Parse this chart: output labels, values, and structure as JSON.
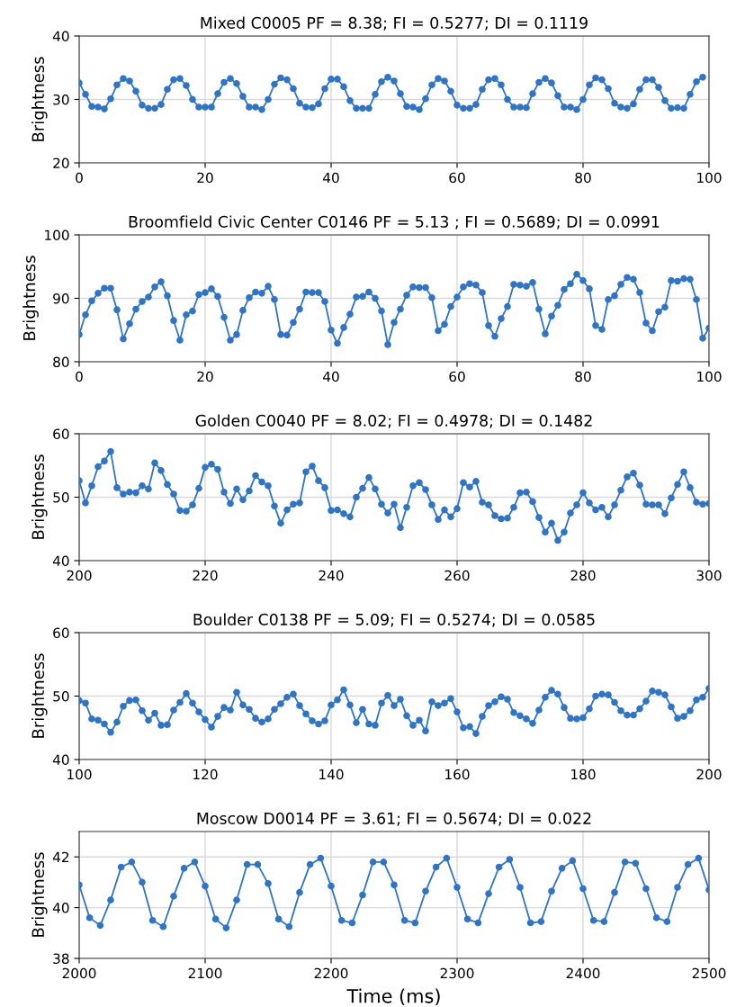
{
  "chart_data": [
    {
      "type": "line",
      "title": "Mixed C0005 PF = 8.38; FI = 0.5277; DI = 0.1119",
      "ylabel": "Brightness",
      "marker": "circle",
      "grid": true,
      "xlim": [
        0,
        100
      ],
      "xticks": [
        0,
        20,
        40,
        60,
        80,
        100
      ],
      "ylim": [
        20,
        40
      ],
      "yticks": [
        20,
        30,
        40
      ],
      "x": [
        0,
        1,
        2,
        3,
        4,
        5,
        6,
        7,
        8,
        9,
        10,
        11,
        12,
        13,
        14,
        15,
        16,
        17,
        18,
        19,
        20,
        21,
        22,
        23,
        24,
        25,
        26,
        27,
        28,
        29,
        30,
        31,
        32,
        33,
        34,
        35,
        36,
        37,
        38,
        39,
        40,
        41,
        42,
        43,
        44,
        45,
        46,
        47,
        48,
        49,
        50,
        51,
        52,
        53,
        54,
        55,
        56,
        57,
        58,
        59,
        60,
        61,
        62,
        63,
        64,
        65,
        66,
        67,
        68,
        69,
        70,
        71,
        72,
        73,
        74,
        75,
        76,
        77,
        78,
        79,
        80,
        81,
        82,
        83,
        84,
        85,
        86,
        87,
        88,
        89,
        90,
        91,
        92,
        93,
        94,
        95,
        96,
        97,
        98,
        99
      ],
      "series": [
        {
          "color": "#2e75c7",
          "values": [
            32.6,
            30.8,
            28.9,
            28.8,
            28.5,
            30.1,
            32.3,
            33.3,
            32.9,
            31.3,
            29.1,
            28.6,
            28.6,
            29.2,
            31.6,
            33.1,
            33.3,
            32.2,
            30.0,
            28.8,
            28.8,
            28.8,
            30.9,
            32.7,
            33.3,
            32.5,
            30.5,
            28.8,
            28.8,
            28.4,
            30.0,
            32.4,
            33.4,
            33.1,
            31.7,
            29.4,
            28.8,
            28.7,
            29.3,
            31.7,
            33.2,
            33.2,
            32.0,
            29.8,
            28.6,
            28.6,
            28.6,
            30.8,
            32.8,
            33.5,
            32.9,
            30.9,
            28.9,
            28.8,
            28.4,
            30.1,
            32.3,
            33.3,
            32.9,
            31.3,
            29.1,
            28.6,
            28.6,
            29.2,
            31.6,
            33.1,
            33.3,
            32.3,
            30.0,
            28.8,
            28.8,
            28.7,
            30.9,
            32.7,
            33.3,
            32.6,
            30.6,
            28.8,
            28.8,
            28.4,
            30.0,
            32.3,
            33.4,
            33.1,
            31.7,
            29.4,
            28.8,
            28.6,
            29.3,
            31.6,
            33.1,
            33.1,
            31.9,
            29.8,
            28.6,
            28.7,
            28.6,
            30.8,
            32.8,
            33.5
          ]
        }
      ]
    },
    {
      "type": "line",
      "title": "Broomfield Civic Center C0146 PF = 5.13 ; FI = 0.5689; DI = 0.0991",
      "ylabel": "Brightness",
      "marker": "circle",
      "grid": true,
      "xlim": [
        0,
        100
      ],
      "xticks": [
        0,
        20,
        40,
        60,
        80,
        100
      ],
      "ylim": [
        80,
        100
      ],
      "yticks": [
        80,
        90,
        100
      ],
      "x": [
        0,
        1,
        2,
        3,
        4,
        5,
        6,
        7,
        8,
        9,
        10,
        11,
        12,
        13,
        14,
        15,
        16,
        17,
        18,
        19,
        20,
        21,
        22,
        23,
        24,
        25,
        26,
        27,
        28,
        29,
        30,
        31,
        32,
        33,
        34,
        35,
        36,
        37,
        38,
        39,
        40,
        41,
        42,
        43,
        44,
        45,
        46,
        47,
        48,
        49,
        50,
        51,
        52,
        53,
        54,
        55,
        56,
        57,
        58,
        59,
        60,
        61,
        62,
        63,
        64,
        65,
        66,
        67,
        68,
        69,
        70,
        71,
        72,
        73,
        74,
        75,
        76,
        77,
        78,
        79,
        80,
        81,
        82,
        83,
        84,
        85,
        86,
        87,
        88,
        89,
        90,
        91,
        92,
        93,
        94,
        95,
        96,
        97,
        98,
        99,
        100
      ],
      "series": [
        {
          "color": "#2e75c7",
          "values": [
            84.3,
            87.4,
            89.6,
            90.8,
            91.6,
            91.6,
            88.2,
            83.6,
            86.0,
            88.3,
            89.5,
            90.2,
            91.8,
            92.6,
            90.4,
            86.5,
            83.4,
            87.4,
            88.0,
            90.6,
            90.9,
            91.5,
            90.3,
            87.0,
            83.4,
            84.3,
            88.1,
            90.1,
            91.0,
            90.8,
            91.9,
            89.8,
            84.3,
            84.2,
            86.2,
            88.3,
            91.0,
            90.9,
            90.9,
            89.5,
            85.0,
            82.9,
            85.4,
            87.5,
            90.2,
            90.3,
            91.0,
            90.0,
            88.0,
            82.7,
            86.2,
            88.3,
            90.5,
            91.8,
            91.7,
            91.7,
            90.1,
            84.9,
            85.9,
            88.7,
            90.2,
            91.8,
            92.3,
            92.1,
            90.9,
            85.7,
            84.0,
            86.8,
            88.7,
            92.2,
            92.1,
            91.9,
            92.5,
            88.3,
            84.4,
            87.2,
            88.9,
            91.4,
            92.3,
            93.8,
            92.8,
            91.5,
            85.7,
            85.1,
            89.8,
            90.4,
            92.2,
            93.3,
            93.0,
            90.9,
            86.1,
            84.9,
            87.9,
            88.6,
            92.8,
            92.7,
            93.1,
            93.0,
            89.8,
            83.7,
            85.3
          ]
        }
      ]
    },
    {
      "type": "line",
      "title": "Golden C0040 PF = 8.02; FI = 0.4978; DI = 0.1482",
      "ylabel": "Brightness",
      "marker": "circle",
      "grid": true,
      "xlim": [
        200,
        300
      ],
      "xticks": [
        200,
        220,
        240,
        260,
        280,
        300
      ],
      "ylim": [
        40,
        60
      ],
      "yticks": [
        40,
        50,
        60
      ],
      "x": [
        200,
        201,
        202,
        203,
        204,
        205,
        206,
        207,
        208,
        209,
        210,
        211,
        212,
        213,
        214,
        215,
        216,
        217,
        218,
        219,
        220,
        221,
        222,
        223,
        224,
        225,
        226,
        227,
        228,
        229,
        230,
        231,
        232,
        233,
        234,
        235,
        236,
        237,
        238,
        239,
        240,
        241,
        242,
        243,
        244,
        245,
        246,
        247,
        248,
        249,
        250,
        251,
        252,
        253,
        254,
        255,
        256,
        257,
        258,
        259,
        260,
        261,
        262,
        263,
        264,
        265,
        266,
        267,
        268,
        269,
        270,
        271,
        272,
        273,
        274,
        275,
        276,
        277,
        278,
        279,
        280,
        281,
        282,
        283,
        284,
        285,
        286,
        287,
        288,
        289,
        290,
        291,
        292,
        293,
        294,
        295,
        296,
        297,
        298,
        299,
        300
      ],
      "series": [
        {
          "color": "#2e75c7",
          "values": [
            52.6,
            49.1,
            51.8,
            54.8,
            55.7,
            57.2,
            51.5,
            50.5,
            50.8,
            50.7,
            51.8,
            51.3,
            55.4,
            54.2,
            52.0,
            50.5,
            47.9,
            47.8,
            48.8,
            51.4,
            54.7,
            55.2,
            54.4,
            50.8,
            49.0,
            51.3,
            49.6,
            51.0,
            53.4,
            52.4,
            51.8,
            48.6,
            45.9,
            48.0,
            48.9,
            49.1,
            54.0,
            54.9,
            52.6,
            51.5,
            47.9,
            48.0,
            47.4,
            46.9,
            50.0,
            51.4,
            53.1,
            51.3,
            48.9,
            47.5,
            48.9,
            45.2,
            48.4,
            51.8,
            52.3,
            51.2,
            48.8,
            46.5,
            48.0,
            46.9,
            48.2,
            52.3,
            51.6,
            52.5,
            49.2,
            48.8,
            47.1,
            46.6,
            46.7,
            48.4,
            50.7,
            50.8,
            49.3,
            46.8,
            44.5,
            45.9,
            43.2,
            44.5,
            47.5,
            48.8,
            50.7,
            49.1,
            48.0,
            48.4,
            46.9,
            48.8,
            51.1,
            53.2,
            53.8,
            51.9,
            48.9,
            48.8,
            48.8,
            47.4,
            49.9,
            52.0,
            54.0,
            51.5,
            49.2,
            48.9,
            49.0
          ]
        }
      ]
    },
    {
      "type": "line",
      "title": "Boulder C0138 PF = 5.09; FI = 0.5274; DI = 0.0585",
      "ylabel": "Brightness",
      "marker": "circle",
      "grid": true,
      "xlim": [
        100,
        200
      ],
      "xticks": [
        100,
        120,
        140,
        160,
        180,
        200
      ],
      "ylim": [
        40,
        60
      ],
      "yticks": [
        40,
        50,
        60
      ],
      "x": [
        100,
        101,
        102,
        103,
        104,
        105,
        106,
        107,
        108,
        109,
        110,
        111,
        112,
        113,
        114,
        115,
        116,
        117,
        118,
        119,
        120,
        121,
        122,
        123,
        124,
        125,
        126,
        127,
        128,
        129,
        130,
        131,
        132,
        133,
        134,
        135,
        136,
        137,
        138,
        139,
        140,
        141,
        142,
        143,
        144,
        145,
        146,
        147,
        148,
        149,
        150,
        151,
        152,
        153,
        154,
        155,
        156,
        157,
        158,
        159,
        160,
        161,
        162,
        163,
        164,
        165,
        166,
        167,
        168,
        169,
        170,
        171,
        172,
        173,
        174,
        175,
        176,
        177,
        178,
        179,
        180,
        181,
        182,
        183,
        184,
        185,
        186,
        187,
        188,
        189,
        190,
        191,
        192,
        193,
        194,
        195,
        196,
        197,
        198,
        199,
        200
      ],
      "series": [
        {
          "color": "#2e75c7",
          "values": [
            49.3,
            48.9,
            46.4,
            46.2,
            45.6,
            44.3,
            45.9,
            48.4,
            49.3,
            49.4,
            47.7,
            46.2,
            47.3,
            45.4,
            45.5,
            47.8,
            49.0,
            50.4,
            48.9,
            47.5,
            46.3,
            45.1,
            46.8,
            48.2,
            47.8,
            50.6,
            48.6,
            47.9,
            46.5,
            45.9,
            46.4,
            47.9,
            48.8,
            49.8,
            50.3,
            48.5,
            47.2,
            46.1,
            45.6,
            46.1,
            48.6,
            49.4,
            51.0,
            48.6,
            45.8,
            47.9,
            45.6,
            45.4,
            48.9,
            50.1,
            48.5,
            49.5,
            46.9,
            45.4,
            46.2,
            44.5,
            49.1,
            48.5,
            48.9,
            49.6,
            47.5,
            45.0,
            45.2,
            44.1,
            46.8,
            48.5,
            49.1,
            49.9,
            49.5,
            47.4,
            46.9,
            46.4,
            45.7,
            47.8,
            49.8,
            50.9,
            50.3,
            48.2,
            46.5,
            46.4,
            46.6,
            48.0,
            50.0,
            50.3,
            50.2,
            49.0,
            47.7,
            47.0,
            47.0,
            48.0,
            49.2,
            50.8,
            50.6,
            50.2,
            48.3,
            46.5,
            46.8,
            47.7,
            49.4,
            49.8,
            51.2
          ]
        }
      ]
    },
    {
      "type": "line",
      "title": "Moscow D0014 PF = 3.61; FI = 0.5674; DI = 0.022",
      "xlabel": "Time (ms)",
      "ylabel": "Brightness",
      "marker": "circle",
      "grid": true,
      "xlim": [
        2000,
        2500
      ],
      "xticks": [
        2000,
        2100,
        2200,
        2300,
        2400,
        2500
      ],
      "ylim": [
        38,
        43
      ],
      "yticks": [
        38,
        40,
        42
      ],
      "x": [
        2000,
        2008.3,
        2016.7,
        2025,
        2033.3,
        2041.7,
        2050,
        2058.3,
        2066.7,
        2075,
        2083.3,
        2091.7,
        2100,
        2108.3,
        2116.7,
        2125,
        2133.3,
        2141.7,
        2150,
        2158.3,
        2166.7,
        2175,
        2183.3,
        2191.7,
        2200,
        2208.3,
        2216.7,
        2225,
        2233.3,
        2241.7,
        2250,
        2258.3,
        2266.7,
        2275,
        2283.3,
        2291.7,
        2300,
        2308.3,
        2316.7,
        2325,
        2333.3,
        2341.7,
        2350,
        2358.3,
        2366.7,
        2375,
        2383.3,
        2391.7,
        2400,
        2408.3,
        2416.7,
        2425,
        2433.3,
        2441.7,
        2450,
        2458.3,
        2466.7,
        2475,
        2483.3,
        2491.7,
        2500
      ],
      "series": [
        {
          "color": "#2e75c7",
          "values": [
            40.9,
            39.6,
            39.3,
            40.3,
            41.6,
            41.8,
            41.0,
            39.5,
            39.25,
            40.45,
            41.55,
            41.8,
            40.85,
            39.55,
            39.2,
            40.3,
            41.7,
            41.7,
            40.95,
            39.55,
            39.25,
            40.6,
            41.7,
            41.95,
            40.85,
            39.5,
            39.4,
            40.5,
            41.8,
            41.8,
            40.9,
            39.5,
            39.4,
            40.65,
            41.6,
            41.95,
            40.8,
            39.55,
            39.4,
            40.55,
            41.6,
            41.9,
            40.8,
            39.4,
            39.45,
            40.65,
            41.55,
            41.85,
            40.75,
            39.5,
            39.45,
            40.6,
            41.8,
            41.75,
            40.75,
            39.6,
            39.45,
            40.8,
            41.7,
            41.95,
            40.7
          ]
        }
      ]
    }
  ]
}
